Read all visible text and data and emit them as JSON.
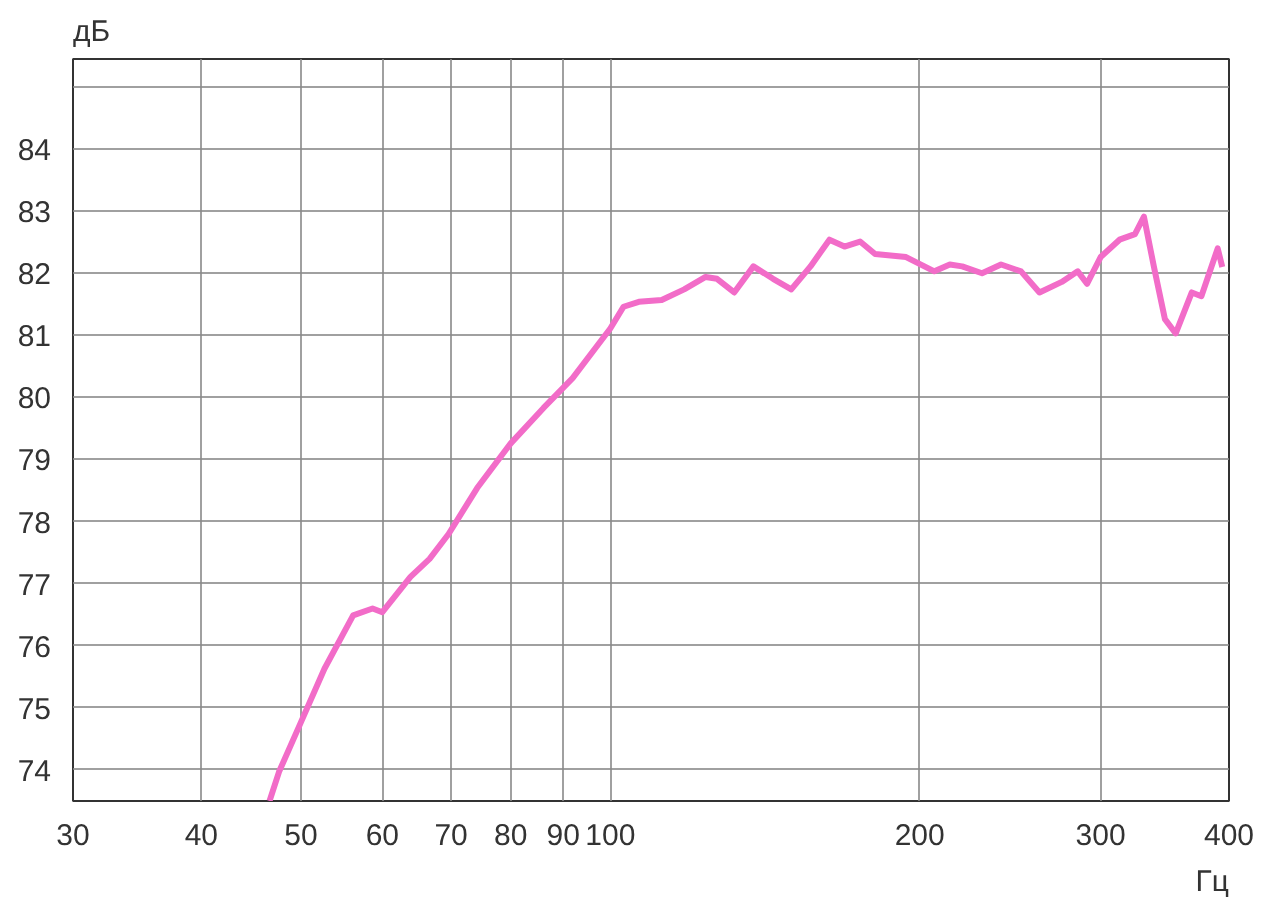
{
  "chart_data": {
    "type": "line",
    "xlabel": "Гц",
    "ylabel": "дБ",
    "log": "x",
    "grid": true,
    "xlim": [
      30,
      400
    ],
    "ylim": [
      73.5,
      85.45
    ],
    "xticks": [
      30,
      40,
      50,
      60,
      70,
      80,
      90,
      100,
      200,
      300,
      400
    ],
    "yticks": [
      74,
      75,
      76,
      77,
      78,
      79,
      80,
      81,
      82,
      83,
      84,
      {
        "value": 85,
        "label": null
      }
    ],
    "series": [
      {
        "color": "#f26cc8",
        "x": [
          46.6,
          47.6,
          50,
          52.7,
          56.2,
          58.7,
          60,
          63.9,
          66.7,
          69.6,
          74.2,
          80,
          86.1,
          91.9,
          100,
          103,
          106.6,
          112.2,
          118,
          123.8,
          127,
          132,
          137.8,
          144,
          150,
          156.6,
          163.4,
          169,
          175,
          181,
          194,
          206.7,
          214,
          220,
          230,
          240,
          251,
          261.6,
          275,
          285,
          291,
          300,
          313,
          324,
          330.6,
          338,
          346.5,
          355,
          368,
          376,
          390,
          394
        ],
        "values": [
          73.5,
          73.97,
          74.77,
          75.63,
          76.49,
          76.6,
          76.54,
          77.11,
          77.4,
          77.8,
          78.54,
          79.26,
          79.83,
          80.31,
          81.11,
          81.46,
          81.54,
          81.57,
          81.74,
          81.94,
          81.91,
          81.69,
          82.11,
          81.91,
          81.74,
          82.11,
          82.54,
          82.43,
          82.51,
          82.31,
          82.26,
          82.03,
          82.14,
          82.11,
          82.0,
          82.14,
          82.03,
          81.69,
          81.86,
          82.03,
          81.83,
          82.26,
          82.54,
          82.63,
          82.91,
          82.11,
          81.26,
          81.03,
          81.69,
          81.63,
          82.4,
          82.1
        ]
      }
    ]
  }
}
